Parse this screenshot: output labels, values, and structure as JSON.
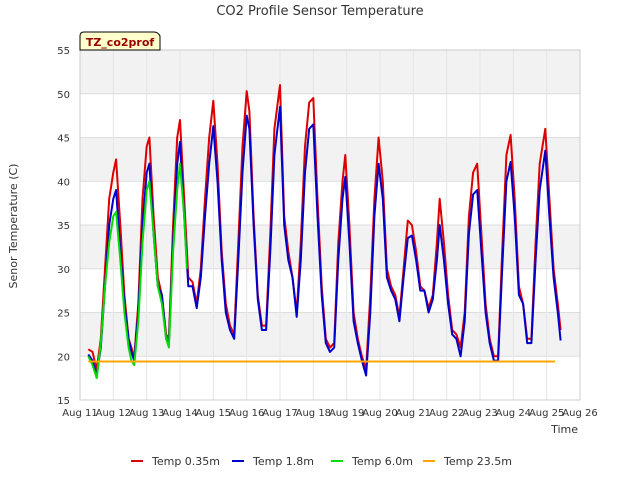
{
  "chart_data": {
    "type": "line",
    "title": "CO2 Profile Sensor Temperature",
    "xlabel": "Time",
    "ylabel": "Senor Temperature (C)",
    "annotation": "TZ_co2prof",
    "ylim": [
      15,
      55
    ],
    "xlim": [
      "Aug 11",
      "Aug 26"
    ],
    "x_ticks": [
      "Aug 11",
      "Aug 12",
      "Aug 13",
      "Aug 14",
      "Aug 15",
      "Aug 16",
      "Aug 17",
      "Aug 18",
      "Aug 19",
      "Aug 20",
      "Aug 21",
      "Aug 22",
      "Aug 23",
      "Aug 24",
      "Aug 25",
      "Aug 26"
    ],
    "y_ticks": [
      15,
      20,
      25,
      30,
      35,
      40,
      45,
      50,
      55
    ],
    "grid": true,
    "banded_background": true,
    "legend_position": "bottom",
    "series": [
      {
        "name": "Temp 0.35m",
        "color": "#dd0000",
        "points": [
          [
            "Aug 11 06:00",
            20.8
          ],
          [
            "Aug 11 09:00",
            20.5
          ],
          [
            "Aug 11 12:00",
            18.5
          ],
          [
            "Aug 11 15:00",
            22
          ],
          [
            "Aug 11 18:00",
            30
          ],
          [
            "Aug 11 21:00",
            38
          ],
          [
            "Aug 12 00:00",
            41
          ],
          [
            "Aug 12 02:00",
            42.5
          ],
          [
            "Aug 12 05:00",
            35
          ],
          [
            "Aug 12 08:00",
            27
          ],
          [
            "Aug 12 11:00",
            22
          ],
          [
            "Aug 12 13:00",
            21
          ],
          [
            "Aug 12 15:00",
            19.8
          ],
          [
            "Aug 12 18:00",
            26
          ],
          [
            "Aug 12 21:00",
            38
          ],
          [
            "Aug 13 00:00",
            44
          ],
          [
            "Aug 13 02:00",
            45
          ],
          [
            "Aug 13 05:00",
            36
          ],
          [
            "Aug 13 08:00",
            29
          ],
          [
            "Aug 13 11:00",
            27
          ],
          [
            "Aug 13 14:00",
            22.5
          ],
          [
            "Aug 13 16:00",
            22
          ],
          [
            "Aug 13 19:00",
            35
          ],
          [
            "Aug 13 22:00",
            45
          ],
          [
            "Aug 14 00:00",
            47
          ],
          [
            "Aug 14 03:00",
            38
          ],
          [
            "Aug 14 06:00",
            29
          ],
          [
            "Aug 14 09:00",
            28.5
          ],
          [
            "Aug 14 12:00",
            26
          ],
          [
            "Aug 14 15:00",
            30
          ],
          [
            "Aug 14 18:00",
            38
          ],
          [
            "Aug 14 21:00",
            45
          ],
          [
            "Aug 15 00:00",
            49.2
          ],
          [
            "Aug 15 03:00",
            42
          ],
          [
            "Aug 15 06:00",
            32
          ],
          [
            "Aug 15 09:00",
            26
          ],
          [
            "Aug 15 12:00",
            23.5
          ],
          [
            "Aug 15 15:00",
            22.5
          ],
          [
            "Aug 15 18:00",
            33
          ],
          [
            "Aug 15 21:00",
            44
          ],
          [
            "Aug 16 00:00",
            50.3
          ],
          [
            "Aug 16 02:00",
            48
          ],
          [
            "Aug 16 05:00",
            36
          ],
          [
            "Aug 16 08:00",
            27
          ],
          [
            "Aug 16 11:00",
            23.5
          ],
          [
            "Aug 16 14:00",
            23.5
          ],
          [
            "Aug 16 17:00",
            34
          ],
          [
            "Aug 16 20:00",
            46
          ],
          [
            "Aug 17 00:00",
            51
          ],
          [
            "Aug 17 03:00",
            36
          ],
          [
            "Aug 17 06:00",
            32
          ],
          [
            "Aug 17 09:00",
            29
          ],
          [
            "Aug 17 12:00",
            25
          ],
          [
            "Aug 17 15:00",
            33
          ],
          [
            "Aug 17 18:00",
            44
          ],
          [
            "Aug 17 21:00",
            49
          ],
          [
            "Aug 18 00:00",
            49.5
          ],
          [
            "Aug 18 03:00",
            38
          ],
          [
            "Aug 18 06:00",
            28
          ],
          [
            "Aug 18 09:00",
            22
          ],
          [
            "Aug 18 12:00",
            21
          ],
          [
            "Aug 18 15:00",
            21.5
          ],
          [
            "Aug 18 18:00",
            33
          ],
          [
            "Aug 18 21:00",
            40
          ],
          [
            "Aug 18 23:00",
            43
          ],
          [
            "Aug 19 02:00",
            35
          ],
          [
            "Aug 19 05:00",
            25
          ],
          [
            "Aug 19 08:00",
            22
          ],
          [
            "Aug 19 11:00",
            20
          ],
          [
            "Aug 19 14:00",
            18.5
          ],
          [
            "Aug 19 17:00",
            27
          ],
          [
            "Aug 19 20:00",
            38
          ],
          [
            "Aug 19 23:00",
            45
          ],
          [
            "Aug 20 02:00",
            40
          ],
          [
            "Aug 20 05:00",
            30
          ],
          [
            "Aug 20 08:00",
            28
          ],
          [
            "Aug 20 11:00",
            27
          ],
          [
            "Aug 20 14:00",
            24.5
          ],
          [
            "Aug 20 17:00",
            30
          ],
          [
            "Aug 20 20:00",
            35.5
          ],
          [
            "Aug 20 23:00",
            35
          ],
          [
            "Aug 21 02:00",
            32
          ],
          [
            "Aug 21 05:00",
            28
          ],
          [
            "Aug 21 08:00",
            27.5
          ],
          [
            "Aug 21 11:00",
            25.5
          ],
          [
            "Aug 21 14:00",
            27
          ],
          [
            "Aug 21 17:00",
            33
          ],
          [
            "Aug 21 19:00",
            38
          ],
          [
            "Aug 21 22:00",
            33
          ],
          [
            "Aug 22 01:00",
            27
          ],
          [
            "Aug 22 04:00",
            23
          ],
          [
            "Aug 22 07:00",
            22.5
          ],
          [
            "Aug 22 10:00",
            21
          ],
          [
            "Aug 22 13:00",
            25
          ],
          [
            "Aug 22 16:00",
            36
          ],
          [
            "Aug 22 19:00",
            41
          ],
          [
            "Aug 22 22:00",
            42
          ],
          [
            "Aug 23 01:00",
            34
          ],
          [
            "Aug 23 04:00",
            26
          ],
          [
            "Aug 23 07:00",
            22
          ],
          [
            "Aug 23 10:00",
            20
          ],
          [
            "Aug 23 13:00",
            20
          ],
          [
            "Aug 23 16:00",
            32
          ],
          [
            "Aug 23 19:00",
            43
          ],
          [
            "Aug 23 22:00",
            45.3
          ],
          [
            "Aug 24 01:00",
            38
          ],
          [
            "Aug 24 04:00",
            28
          ],
          [
            "Aug 24 07:00",
            26
          ],
          [
            "Aug 24 10:00",
            22
          ],
          [
            "Aug 24 13:00",
            22
          ],
          [
            "Aug 24 16:00",
            33
          ],
          [
            "Aug 24 19:00",
            42
          ],
          [
            "Aug 24 23:00",
            46
          ],
          [
            "Aug 25 02:00",
            38
          ],
          [
            "Aug 25 05:00",
            30
          ],
          [
            "Aug 25 08:00",
            26
          ],
          [
            "Aug 25 10:00",
            23
          ]
        ]
      },
      {
        "name": "Temp 1.8m",
        "color": "#0000cc",
        "points": [
          [
            "Aug 11 06:00",
            20.2
          ],
          [
            "Aug 11 09:00",
            19.5
          ],
          [
            "Aug 11 12:00",
            17.8
          ],
          [
            "Aug 11 15:00",
            21
          ],
          [
            "Aug 11 18:00",
            28
          ],
          [
            "Aug 11 21:00",
            35
          ],
          [
            "Aug 12 00:00",
            38
          ],
          [
            "Aug 12 02:00",
            39
          ],
          [
            "Aug 12 05:00",
            32
          ],
          [
            "Aug 12 08:00",
            26
          ],
          [
            "Aug 12 11:00",
            22
          ],
          [
            "Aug 12 13:00",
            20.5
          ],
          [
            "Aug 12 15:00",
            19.5
          ],
          [
            "Aug 12 18:00",
            25
          ],
          [
            "Aug 12 21:00",
            35
          ],
          [
            "Aug 13 00:00",
            41
          ],
          [
            "Aug 13 02:00",
            42
          ],
          [
            "Aug 13 05:00",
            34
          ],
          [
            "Aug 13 08:00",
            28
          ],
          [
            "Aug 13 11:00",
            27
          ],
          [
            "Aug 13 14:00",
            22
          ],
          [
            "Aug 13 16:00",
            21.5
          ],
          [
            "Aug 13 19:00",
            33
          ],
          [
            "Aug 13 22:00",
            42
          ],
          [
            "Aug 14 00:00",
            44.5
          ],
          [
            "Aug 14 03:00",
            36
          ],
          [
            "Aug 14 06:00",
            28
          ],
          [
            "Aug 14 09:00",
            28
          ],
          [
            "Aug 14 12:00",
            25.5
          ],
          [
            "Aug 14 15:00",
            29
          ],
          [
            "Aug 14 18:00",
            36
          ],
          [
            "Aug 14 21:00",
            42
          ],
          [
            "Aug 15 00:00",
            46.3
          ],
          [
            "Aug 15 03:00",
            40
          ],
          [
            "Aug 15 06:00",
            31
          ],
          [
            "Aug 15 09:00",
            25
          ],
          [
            "Aug 15 12:00",
            23
          ],
          [
            "Aug 15 15:00",
            22
          ],
          [
            "Aug 15 18:00",
            31
          ],
          [
            "Aug 15 21:00",
            41
          ],
          [
            "Aug 16 00:00",
            47.5
          ],
          [
            "Aug 16 02:00",
            46
          ],
          [
            "Aug 16 05:00",
            35
          ],
          [
            "Aug 16 08:00",
            26.5
          ],
          [
            "Aug 16 11:00",
            23
          ],
          [
            "Aug 16 14:00",
            23
          ],
          [
            "Aug 16 17:00",
            32
          ],
          [
            "Aug 16 20:00",
            43
          ],
          [
            "Aug 17 00:00",
            48.5
          ],
          [
            "Aug 17 03:00",
            35
          ],
          [
            "Aug 17 06:00",
            31
          ],
          [
            "Aug 17 09:00",
            29
          ],
          [
            "Aug 17 12:00",
            24.5
          ],
          [
            "Aug 17 15:00",
            31
          ],
          [
            "Aug 17 18:00",
            41
          ],
          [
            "Aug 17 21:00",
            46
          ],
          [
            "Aug 18 00:00",
            46.5
          ],
          [
            "Aug 18 03:00",
            36
          ],
          [
            "Aug 18 06:00",
            27
          ],
          [
            "Aug 18 09:00",
            21.5
          ],
          [
            "Aug 18 12:00",
            20.5
          ],
          [
            "Aug 18 15:00",
            21
          ],
          [
            "Aug 18 18:00",
            31
          ],
          [
            "Aug 18 21:00",
            38
          ],
          [
            "Aug 18 23:00",
            40.5
          ],
          [
            "Aug 19 02:00",
            33
          ],
          [
            "Aug 19 05:00",
            24
          ],
          [
            "Aug 19 08:00",
            21.5
          ],
          [
            "Aug 19 11:00",
            19.5
          ],
          [
            "Aug 19 14:00",
            17.8
          ],
          [
            "Aug 19 17:00",
            25
          ],
          [
            "Aug 19 20:00",
            36
          ],
          [
            "Aug 19 23:00",
            42
          ],
          [
            "Aug 20 02:00",
            38
          ],
          [
            "Aug 20 05:00",
            29
          ],
          [
            "Aug 20 08:00",
            27.5
          ],
          [
            "Aug 20 11:00",
            26.5
          ],
          [
            "Aug 20 14:00",
            24
          ],
          [
            "Aug 20 17:00",
            29
          ],
          [
            "Aug 20 20:00",
            33.5
          ],
          [
            "Aug 20 23:00",
            33.8
          ],
          [
            "Aug 21 02:00",
            31
          ],
          [
            "Aug 21 05:00",
            27.5
          ],
          [
            "Aug 21 08:00",
            27.5
          ],
          [
            "Aug 21 11:00",
            25
          ],
          [
            "Aug 21 14:00",
            26.5
          ],
          [
            "Aug 21 17:00",
            31
          ],
          [
            "Aug 21 19:00",
            35
          ],
          [
            "Aug 21 22:00",
            31
          ],
          [
            "Aug 22 01:00",
            26
          ],
          [
            "Aug 22 04:00",
            22.5
          ],
          [
            "Aug 22 07:00",
            22
          ],
          [
            "Aug 22 10:00",
            20
          ],
          [
            "Aug 22 13:00",
            24
          ],
          [
            "Aug 22 16:00",
            34
          ],
          [
            "Aug 22 19:00",
            38.5
          ],
          [
            "Aug 22 22:00",
            39
          ],
          [
            "Aug 23 01:00",
            32
          ],
          [
            "Aug 23 04:00",
            25
          ],
          [
            "Aug 23 07:00",
            21.5
          ],
          [
            "Aug 23 10:00",
            19.5
          ],
          [
            "Aug 23 13:00",
            19.5
          ],
          [
            "Aug 23 16:00",
            30
          ],
          [
            "Aug 23 19:00",
            40
          ],
          [
            "Aug 23 22:00",
            42.2
          ],
          [
            "Aug 24 01:00",
            36
          ],
          [
            "Aug 24 04:00",
            27
          ],
          [
            "Aug 24 07:00",
            26
          ],
          [
            "Aug 24 10:00",
            21.5
          ],
          [
            "Aug 24 13:00",
            21.5
          ],
          [
            "Aug 24 16:00",
            31
          ],
          [
            "Aug 24 19:00",
            39
          ],
          [
            "Aug 24 23:00",
            43.5
          ],
          [
            "Aug 25 02:00",
            36
          ],
          [
            "Aug 25 05:00",
            29
          ],
          [
            "Aug 25 08:00",
            25
          ],
          [
            "Aug 25 10:00",
            21.8
          ]
        ]
      },
      {
        "name": "Temp 6.0m",
        "color": "#00dd00",
        "points": [
          [
            "Aug 11 06:00",
            20
          ],
          [
            "Aug 11 09:00",
            19
          ],
          [
            "Aug 11 12:00",
            17.5
          ],
          [
            "Aug 11 15:00",
            21.5
          ],
          [
            "Aug 11 18:00",
            28
          ],
          [
            "Aug 11 21:00",
            33
          ],
          [
            "Aug 12 00:00",
            36
          ],
          [
            "Aug 12 02:00",
            36.5
          ],
          [
            "Aug 12 05:00",
            31
          ],
          [
            "Aug 12 08:00",
            25
          ],
          [
            "Aug 12 11:00",
            21
          ],
          [
            "Aug 12 13:00",
            19.5
          ],
          [
            "Aug 12 15:00",
            19
          ],
          [
            "Aug 12 18:00",
            24
          ],
          [
            "Aug 12 21:00",
            33
          ],
          [
            "Aug 13 00:00",
            39
          ],
          [
            "Aug 13 02:00",
            40
          ],
          [
            "Aug 13 05:00",
            34
          ],
          [
            "Aug 13 08:00",
            28
          ],
          [
            "Aug 13 11:00",
            26
          ],
          [
            "Aug 13 14:00",
            22
          ],
          [
            "Aug 13 16:00",
            21
          ],
          [
            "Aug 13 19:00",
            32
          ],
          [
            "Aug 13 22:00",
            39
          ],
          [
            "Aug 14 00:00",
            42
          ],
          [
            "Aug 14 03:00",
            36
          ],
          [
            "Aug 14 05:00",
            30
          ]
        ]
      },
      {
        "name": "Temp 23.5m",
        "color": "#ffa500",
        "points": [
          [
            "Aug 11 06:00",
            19.4
          ],
          [
            "Aug 25 06:00",
            19.4
          ]
        ]
      }
    ]
  }
}
